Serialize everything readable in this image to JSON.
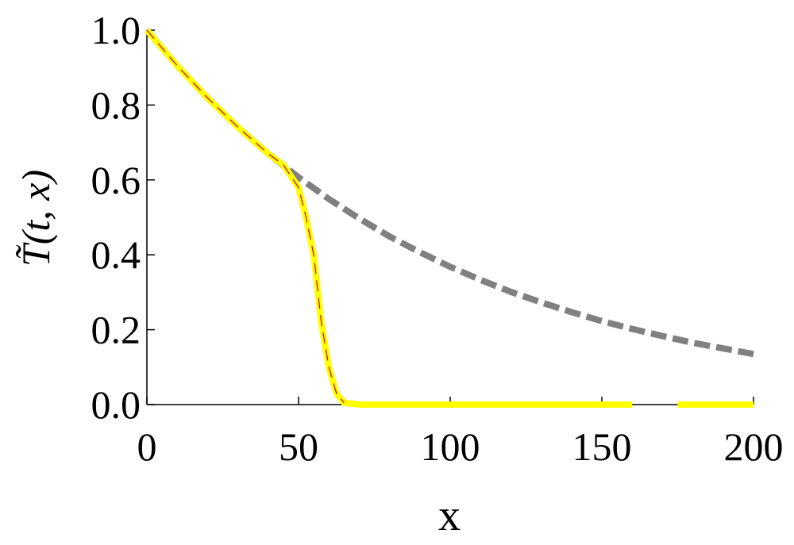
{
  "chart_data": {
    "type": "line",
    "x_label": "x",
    "y_label": "T̃(t, x)",
    "xlim": [
      0,
      200
    ],
    "xticks": [
      0,
      50,
      100,
      150,
      200
    ],
    "ylim": [
      0,
      1
    ],
    "yticks": [
      {
        "value": 0,
        "label": "0.0"
      },
      0.2,
      0.4,
      0.6,
      0.8,
      {
        "value": 1,
        "label": "1.0"
      }
    ],
    "series": [
      {
        "color": "#808080",
        "style": "dashed",
        "width": 8,
        "x": [
          0,
          10,
          20,
          30,
          40,
          50,
          60,
          70,
          80,
          90,
          100,
          110,
          120,
          130,
          140,
          150,
          160,
          170,
          180,
          190,
          200
        ],
        "values": [
          1,
          0.905,
          0.819,
          0.741,
          0.67,
          0.607,
          0.549,
          0.497,
          0.449,
          0.407,
          0.368,
          0.333,
          0.301,
          0.273,
          0.247,
          0.223,
          0.202,
          0.183,
          0.165,
          0.15,
          0.135
        ]
      },
      {
        "color": "#ffff00",
        "style": "solid",
        "width": 8,
        "x": [
          0,
          10,
          20,
          30,
          40,
          45,
          50,
          52.5,
          55,
          57.5,
          60,
          62.5,
          65,
          70,
          100,
          160,
          167,
          175,
          200
        ],
        "values": [
          1,
          0.905,
          0.819,
          0.741,
          0.67,
          0.64,
          0.58,
          0.5,
          0.4,
          0.22,
          0.1,
          0.03,
          0.005,
          0,
          0,
          0,
          null,
          0,
          0
        ]
      },
      {
        "color": "#cc0000",
        "style": "dashed",
        "width": 1.2,
        "x": [
          0,
          10,
          20,
          30,
          40,
          45,
          50,
          52.5,
          55,
          57.5,
          60,
          62.5,
          65
        ],
        "values": [
          1,
          0.905,
          0.819,
          0.741,
          0.67,
          0.64,
          0.58,
          0.5,
          0.4,
          0.22,
          0.1,
          0.03,
          0.005
        ]
      }
    ]
  }
}
